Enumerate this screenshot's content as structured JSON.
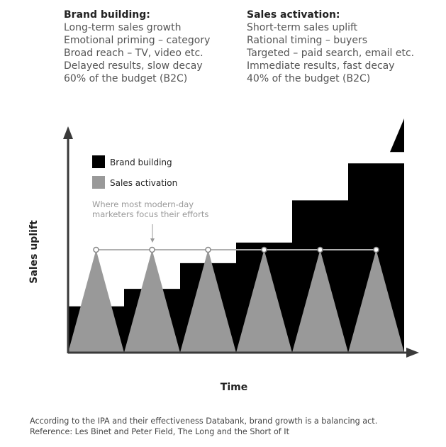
{
  "brand_column": {
    "heading": "Brand building:",
    "lines": [
      "Long-term sales growth",
      "Emotional priming – category",
      "Broad reach – TV, video etc.",
      "Delayed results, slow decay",
      "60% of the budget (B2C)"
    ]
  },
  "sales_column": {
    "heading": "Sales activation:",
    "lines": [
      "Short-term sales uplift",
      "Rational timing – buyers",
      "Targeted – paid search, email etc.",
      "Immediate results, fast decay",
      "40% of the budget (B2C)"
    ]
  },
  "chart_data": {
    "type": "area",
    "xlabel": "Time",
    "ylabel": "Sales uplift",
    "legend": [
      {
        "name": "Brand building",
        "color": "#000000"
      },
      {
        "name": "Sales activation",
        "color": "#999999"
      }
    ],
    "annotation": {
      "lines": [
        "Where most modern-day",
        "marketers focus their efforts"
      ]
    },
    "colors": {
      "axis": "#3a3a3a",
      "brand": "#000000",
      "sales": "#999999",
      "focus_line": "#b0b0b0"
    },
    "series": [
      {
        "name": "Brand building",
        "x": [
          0,
          1,
          2,
          3,
          4,
          5,
          6
        ],
        "values": [
          0.45,
          0.62,
          0.87,
          1.07,
          1.48,
          1.84,
          1.95
        ]
      },
      {
        "name": "Sales activation",
        "x": [
          0.5,
          1.5,
          2.5,
          3.5,
          4.5,
          5.5
        ],
        "values": [
          1,
          1,
          1,
          1,
          1,
          1
        ]
      }
    ]
  },
  "footer": {
    "line1": "According to the IPA and their effectiveness Databank, brand growth is a balancing act.",
    "line2": "Reference: Les Binet and Peter Field, The Long and the Short of It"
  }
}
